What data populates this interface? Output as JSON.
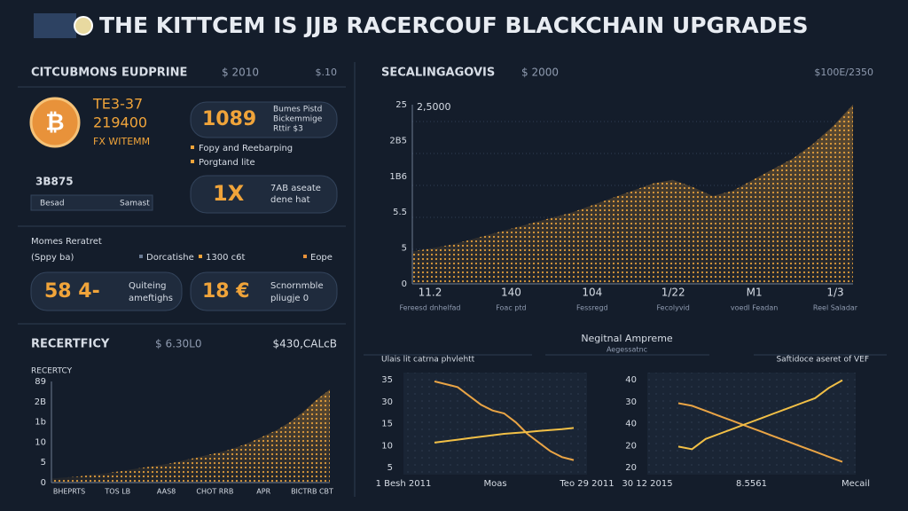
{
  "header": {
    "title": "THE KITTCEM IS JJB RACERCOUF BLACKCHAIN UPGRADES"
  },
  "left_panel": {
    "title": "CITCUBMONS EUDPRINE",
    "subtitle": "$ 2010",
    "corner": "$.10",
    "coin_lines": [
      "TE3-37",
      "219400",
      "FX WITEMM"
    ],
    "card1": {
      "value": "1089",
      "text": [
        "Bumes Pistd",
        "Bickemmige",
        "Rttir $3"
      ]
    },
    "bullets": [
      "Fopy and Reebarping",
      "Porgtand lite"
    ],
    "card2": {
      "value": "1X",
      "text": [
        "7AB aseate",
        "dene hat"
      ]
    },
    "stat": "3B875",
    "field": [
      "Besad",
      "Samast"
    ],
    "section": "Momes Reratret",
    "section_sub": "(Sppy ba)",
    "legend": [
      "Dorcatishe",
      "1300 c6t",
      "Eope"
    ],
    "card3": {
      "value": "58 4-",
      "text": [
        "Quiteing",
        "ameftighs"
      ]
    },
    "card4": {
      "value": "18 €",
      "text": [
        "Scnornmble",
        "pliugje 0"
      ]
    }
  },
  "recert": {
    "title": "RECERTFICY",
    "subtitle": "$ 6.30L0",
    "corner": "$430,CALcB",
    "label": "RECERTCY",
    "yticks": [
      "89",
      "2B",
      "1b",
      "10",
      "5",
      "0"
    ],
    "xticks": [
      "BHEPRTS",
      "TOS LB",
      "AAS8",
      "CHOT RRB",
      "APR",
      "BICTRB CBT"
    ],
    "ylim": [
      0,
      100
    ],
    "values": [
      4,
      5,
      6,
      8,
      9,
      11,
      13,
      15,
      17,
      19,
      22,
      25,
      28,
      31,
      35,
      40,
      46,
      52,
      60,
      70,
      82,
      92
    ]
  },
  "main": {
    "title": "SECALINGAGOVIS",
    "subtitle": "$ 2000",
    "corner": "$100E/2350",
    "top_label": "2,5000",
    "yticks": [
      "25",
      "2B5",
      "1B6",
      "5.5",
      "5",
      "0"
    ],
    "xticks": [
      "11.2",
      "140",
      "104",
      "1/22",
      "M1",
      "1/3"
    ],
    "xsub": [
      "Fereesd dnhelfad",
      "Foac ptd",
      "Fessregd",
      "Fecolyvid",
      "voedl Feadan",
      "Reel Saladar"
    ],
    "ylim": [
      0,
      100
    ],
    "values": [
      18,
      20,
      22,
      25,
      28,
      31,
      34,
      37,
      40,
      44,
      48,
      52,
      56,
      58,
      54,
      49,
      52,
      58,
      64,
      70,
      78,
      88,
      100
    ]
  },
  "bottom": {
    "title": "Negitnal Ampreme",
    "subtitle": "Aegessatnc",
    "left": {
      "label": "Ulais lit catrna phvlehtt",
      "yticks": [
        "35",
        "30",
        "15",
        "10",
        "5"
      ],
      "xticks": [
        "1 Besh 2011",
        "Moas",
        "Teo 29 2011"
      ],
      "ylim": [
        0,
        35
      ],
      "series": [
        {
          "color": "#e9a445",
          "values": [
            32,
            31,
            30,
            27,
            24,
            22,
            21,
            18,
            14,
            11,
            8,
            6,
            5
          ]
        },
        {
          "color": "#f2c046",
          "values": [
            11,
            11.5,
            12,
            12.5,
            13,
            13.5,
            14,
            14.3,
            14.6,
            15,
            15.3,
            15.6,
            16
          ]
        }
      ]
    },
    "right": {
      "label": "Saftidoce aseret of VEF",
      "yticks": [
        "40",
        "30",
        "40",
        "20",
        "20"
      ],
      "xticks": [
        "30 12 2015",
        "8.5561",
        "Mecail"
      ],
      "ylim": [
        0,
        40
      ],
      "series": [
        {
          "color": "#e9a445",
          "values": [
            28,
            27,
            25,
            23,
            21,
            19,
            17,
            15,
            13,
            11,
            9,
            7,
            5
          ]
        },
        {
          "color": "#f2c046",
          "values": [
            11,
            10,
            14,
            16,
            18,
            20,
            22,
            24,
            26,
            28,
            30,
            34,
            37
          ]
        }
      ]
    }
  }
}
